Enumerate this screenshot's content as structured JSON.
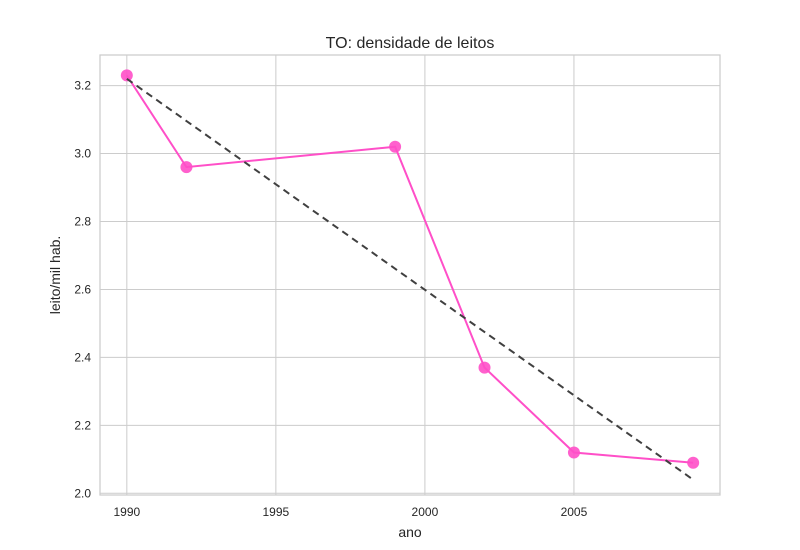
{
  "chart_data": {
    "type": "line",
    "title": "TO: densidade de leitos",
    "xlabel": "ano",
    "ylabel": "leito/mil hab.",
    "xlim": [
      1989.1,
      2009.9
    ],
    "ylim": [
      1.995,
      3.29
    ],
    "xticks": [
      1990,
      1995,
      2000,
      2005
    ],
    "yticks": [
      2.0,
      2.2,
      2.4,
      2.6,
      2.8,
      3.0,
      3.2
    ],
    "ytick_labels": [
      "2.0",
      "2.2",
      "2.4",
      "2.6",
      "2.8",
      "3.0",
      "3.2"
    ],
    "grid": true,
    "series": [
      {
        "kind": "line+markers",
        "color": "#ff4fc8",
        "x": [
          1990,
          1992,
          1999,
          2002,
          2005,
          2009
        ],
        "y": [
          3.23,
          2.96,
          3.02,
          2.37,
          2.12,
          2.09
        ]
      },
      {
        "kind": "trend-dashed",
        "color": "#404040",
        "x": [
          1990,
          2009
        ],
        "y": [
          3.22,
          2.04
        ]
      }
    ]
  }
}
